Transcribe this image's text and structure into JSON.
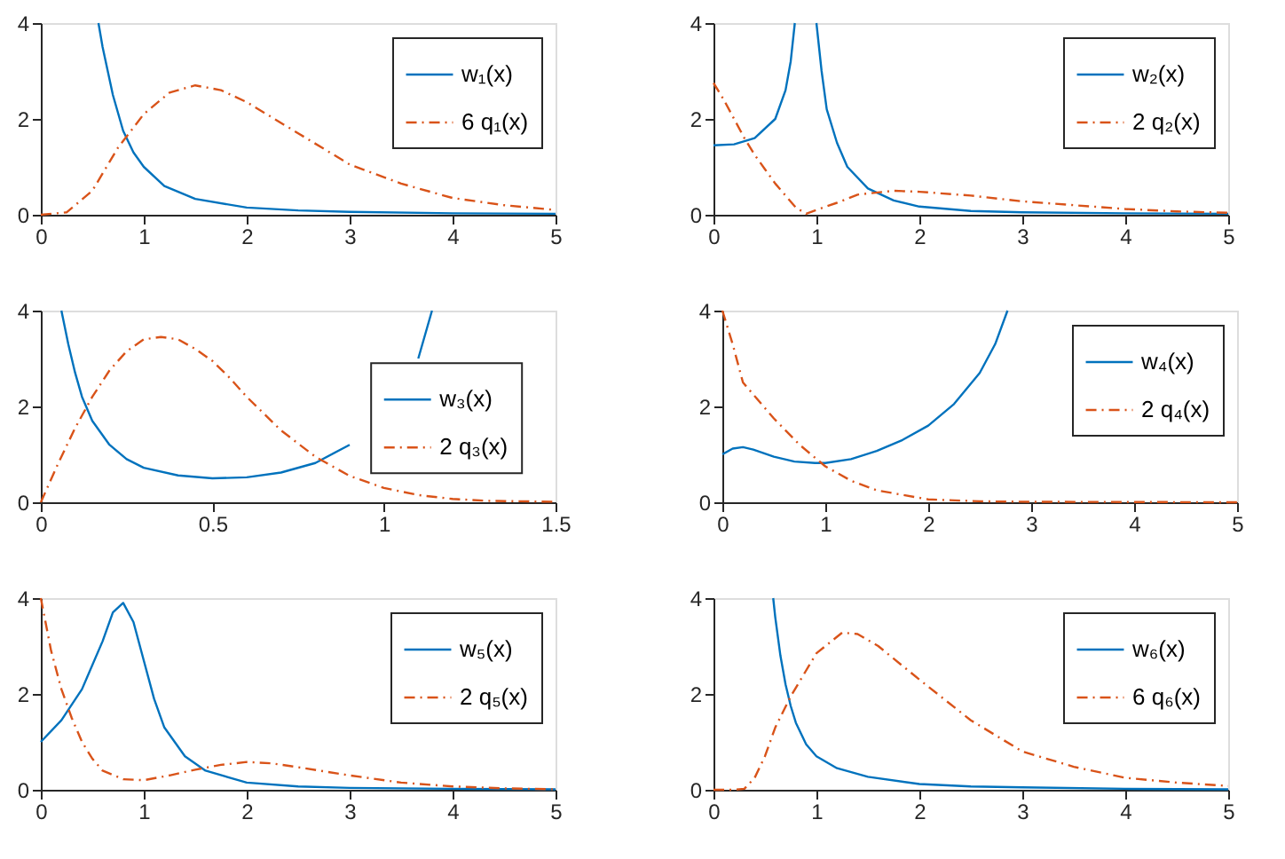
{
  "chart_data": [
    {
      "type": "line",
      "xlim": [
        0,
        5
      ],
      "ylim": [
        0,
        4
      ],
      "xticks": [
        0,
        1,
        2,
        3,
        4,
        5
      ],
      "yticks": [
        0,
        2,
        4
      ],
      "grid": false,
      "legend": "top right",
      "series": [
        {
          "name": "w₁(x)",
          "color": "#0072bd",
          "line_style": "solid",
          "x": [
            0.56,
            0.6,
            0.65,
            0.7,
            0.8,
            0.9,
            1,
            1.2,
            1.5,
            2,
            2.5,
            3,
            4,
            5
          ],
          "values": [
            4,
            3.5,
            3.0,
            2.5,
            1.75,
            1.3,
            1.0,
            0.6,
            0.33,
            0.15,
            0.09,
            0.06,
            0.03,
            0.02
          ]
        },
        {
          "name": "6 q₁(x)",
          "color": "#d95319",
          "line_style": "dashed",
          "x": [
            0,
            0.25,
            0.5,
            0.75,
            1,
            1.25,
            1.5,
            1.75,
            2,
            2.5,
            3,
            3.5,
            4,
            4.5,
            5
          ],
          "values": [
            0,
            0.05,
            0.5,
            1.4,
            2.1,
            2.55,
            2.7,
            2.6,
            2.35,
            1.7,
            1.05,
            0.65,
            0.35,
            0.2,
            0.1
          ]
        }
      ]
    },
    {
      "type": "line",
      "xlim": [
        0,
        5
      ],
      "ylim": [
        0,
        4
      ],
      "xticks": [
        0,
        1,
        2,
        3,
        4,
        5
      ],
      "yticks": [
        0,
        2,
        4
      ],
      "grid": false,
      "legend": "top right",
      "series": [
        {
          "name": "w₂(x)",
          "color": "#0072bd",
          "line_style": "solid",
          "x": [
            0,
            0.2,
            0.4,
            0.6,
            0.7,
            0.75,
            0.79,
            0.9,
            1.0,
            1.05,
            1.1,
            1.2,
            1.3,
            1.5,
            1.75,
            2,
            2.5,
            3,
            4,
            5
          ],
          "values": [
            1.45,
            1.47,
            1.6,
            2.0,
            2.6,
            3.2,
            4,
            null,
            4,
            3.0,
            2.2,
            1.5,
            1.0,
            0.55,
            0.3,
            0.17,
            0.08,
            0.05,
            0.03,
            0.02
          ]
        },
        {
          "name": "2 q₂(x)",
          "color": "#d95319",
          "line_style": "dashed",
          "x": [
            0,
            0.1,
            0.2,
            0.3,
            0.4,
            0.5,
            0.6,
            0.7,
            0.8,
            0.9,
            1,
            1.2,
            1.4,
            1.75,
            2,
            2.5,
            3,
            3.5,
            4,
            4.5,
            5
          ],
          "values": [
            2.75,
            2.4,
            2.0,
            1.6,
            1.25,
            0.95,
            0.65,
            0.4,
            0.15,
            0.02,
            0.1,
            0.25,
            0.42,
            0.5,
            0.48,
            0.4,
            0.28,
            0.2,
            0.12,
            0.07,
            0.04
          ]
        }
      ]
    },
    {
      "type": "line",
      "xlim": [
        0,
        1.5
      ],
      "ylim": [
        0,
        4
      ],
      "xticks": [
        0,
        0.5,
        1,
        1.5
      ],
      "yticks": [
        0,
        2,
        4
      ],
      "grid": false,
      "legend": "right",
      "series": [
        {
          "name": "w₃(x)",
          "color": "#0072bd",
          "line_style": "solid",
          "x": [
            0.06,
            0.08,
            0.1,
            0.12,
            0.15,
            0.2,
            0.25,
            0.3,
            0.4,
            0.5,
            0.6,
            0.7,
            0.8,
            0.9,
            1,
            1.05,
            1.1,
            1.14
          ],
          "values": [
            4,
            3.3,
            2.7,
            2.2,
            1.7,
            1.2,
            0.9,
            0.72,
            0.56,
            0.5,
            0.52,
            0.62,
            0.82,
            1.2,
            null,
            null,
            3.0,
            4
          ]
        },
        {
          "name": "2 q₃(x)",
          "color": "#d95319",
          "line_style": "dashed",
          "x": [
            0,
            0.05,
            0.1,
            0.15,
            0.2,
            0.25,
            0.3,
            0.35,
            0.4,
            0.45,
            0.5,
            0.55,
            0.6,
            0.7,
            0.8,
            0.9,
            1,
            1.1,
            1.2,
            1.3,
            1.5
          ],
          "values": [
            0,
            0.8,
            1.55,
            2.2,
            2.75,
            3.15,
            3.4,
            3.45,
            3.4,
            3.2,
            2.95,
            2.6,
            2.2,
            1.5,
            0.95,
            0.55,
            0.3,
            0.15,
            0.07,
            0.03,
            0.01
          ]
        }
      ]
    },
    {
      "type": "line",
      "xlim": [
        0,
        5
      ],
      "ylim": [
        0,
        4
      ],
      "xticks": [
        0,
        1,
        2,
        3,
        4,
        5
      ],
      "yticks": [
        0,
        2,
        4
      ],
      "grid": false,
      "legend": "top right",
      "series": [
        {
          "name": "w₄(x)",
          "color": "#0072bd",
          "line_style": "solid",
          "x": [
            0,
            0.1,
            0.2,
            0.3,
            0.5,
            0.7,
            0.9,
            1,
            1.25,
            1.5,
            1.75,
            2,
            2.25,
            2.5,
            2.65,
            2.77
          ],
          "values": [
            1.0,
            1.12,
            1.15,
            1.1,
            0.95,
            0.85,
            0.82,
            0.82,
            0.9,
            1.07,
            1.3,
            1.6,
            2.05,
            2.7,
            3.3,
            4
          ]
        },
        {
          "name": "2 q₄(x)",
          "color": "#d95319",
          "line_style": "dashed",
          "x": [
            0,
            0.1,
            0.2,
            0.3,
            0.5,
            0.75,
            1,
            1.25,
            1.5,
            2,
            2.5,
            3,
            5
          ],
          "values": [
            4,
            3.3,
            2.5,
            2.25,
            1.75,
            1.2,
            0.75,
            0.45,
            0.25,
            0.06,
            0.02,
            0.01,
            0
          ]
        }
      ]
    },
    {
      "type": "line",
      "xlim": [
        0,
        5
      ],
      "ylim": [
        0,
        4
      ],
      "xticks": [
        0,
        1,
        2,
        3,
        4,
        5
      ],
      "yticks": [
        0,
        2,
        4
      ],
      "grid": false,
      "legend": "top right",
      "series": [
        {
          "name": "w₅(x)",
          "color": "#0072bd",
          "line_style": "solid",
          "x": [
            0,
            0.2,
            0.4,
            0.6,
            0.7,
            0.8,
            0.9,
            1,
            1.1,
            1.2,
            1.4,
            1.6,
            2,
            2.5,
            3,
            4,
            5
          ],
          "values": [
            1.0,
            1.45,
            2.1,
            3.1,
            3.7,
            3.9,
            3.5,
            2.7,
            1.9,
            1.3,
            0.7,
            0.4,
            0.15,
            0.07,
            0.04,
            0.02,
            0.01
          ]
        },
        {
          "name": "2 q₅(x)",
          "color": "#d95319",
          "line_style": "dashed",
          "x": [
            0,
            0.1,
            0.2,
            0.3,
            0.4,
            0.5,
            0.6,
            0.8,
            1,
            1.25,
            1.5,
            1.75,
            2,
            2.25,
            2.5,
            3,
            3.5,
            4,
            4.5,
            5
          ],
          "values": [
            4,
            2.9,
            2.1,
            1.5,
            1.0,
            0.65,
            0.4,
            0.22,
            0.2,
            0.3,
            0.42,
            0.52,
            0.58,
            0.55,
            0.47,
            0.3,
            0.15,
            0.07,
            0.03,
            0.01
          ]
        }
      ]
    },
    {
      "type": "line",
      "xlim": [
        0,
        5
      ],
      "ylim": [
        0,
        4
      ],
      "xticks": [
        0,
        1,
        2,
        3,
        4,
        5
      ],
      "yticks": [
        0,
        2,
        4
      ],
      "grid": false,
      "legend": "top right",
      "series": [
        {
          "name": "w₆(x)",
          "color": "#0072bd",
          "line_style": "solid",
          "x": [
            0.58,
            0.6,
            0.65,
            0.7,
            0.75,
            0.8,
            0.9,
            1,
            1.2,
            1.5,
            2,
            2.5,
            3,
            4,
            5
          ],
          "values": [
            4,
            3.6,
            2.8,
            2.2,
            1.75,
            1.4,
            0.95,
            0.7,
            0.45,
            0.27,
            0.12,
            0.07,
            0.05,
            0.02,
            0.01
          ]
        },
        {
          "name": "6 q₆(x)",
          "color": "#d95319",
          "line_style": "dashed",
          "x": [
            0,
            0.2,
            0.3,
            0.4,
            0.5,
            0.6,
            0.75,
            1,
            1.25,
            1.4,
            1.6,
            2,
            2.5,
            3,
            3.5,
            4,
            4.5,
            5
          ],
          "values": [
            0,
            0,
            0.02,
            0.25,
            0.7,
            1.3,
            1.95,
            2.85,
            3.28,
            3.25,
            3.0,
            2.3,
            1.45,
            0.8,
            0.48,
            0.25,
            0.15,
            0.08
          ]
        }
      ]
    }
  ]
}
